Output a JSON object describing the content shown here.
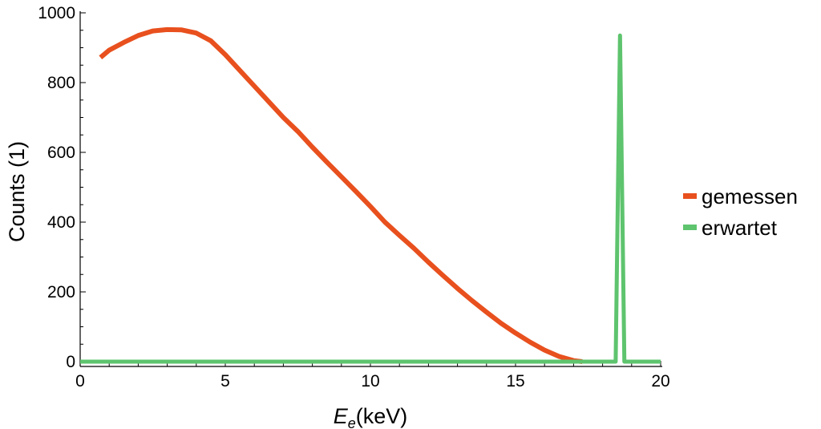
{
  "chart_data": {
    "type": "line",
    "title": "",
    "xlabel": "(keV)",
    "xlabel_symbol": "E",
    "xlabel_subscript": "e",
    "ylabel": "Counts (1)",
    "xlim": [
      0,
      20
    ],
    "ylim": [
      0,
      1000
    ],
    "x_ticks": [
      0,
      5,
      10,
      15,
      20
    ],
    "x_tick_labels": [
      "0",
      "5",
      "10",
      "15",
      "20"
    ],
    "y_ticks": [
      0,
      200,
      400,
      600,
      800,
      1000
    ],
    "y_tick_labels": [
      "0",
      "200",
      "400",
      "600",
      "800",
      "1000"
    ],
    "grid": false,
    "legend_position": "right",
    "series": [
      {
        "name": "gemessen",
        "color": "#e8501e",
        "x": [
          0.7,
          1.0,
          1.5,
          2.0,
          2.5,
          3.0,
          3.5,
          4.0,
          4.5,
          5.0,
          5.5,
          6.0,
          6.5,
          7.0,
          7.5,
          8.0,
          8.5,
          9.0,
          9.5,
          10.0,
          10.5,
          11.0,
          11.5,
          12.0,
          12.5,
          13.0,
          13.5,
          14.0,
          14.5,
          15.0,
          15.5,
          16.0,
          16.5,
          17.0,
          17.3
        ],
        "y": [
          872,
          893,
          915,
          935,
          948,
          952,
          951,
          942,
          920,
          880,
          835,
          790,
          745,
          700,
          660,
          615,
          572,
          530,
          488,
          445,
          400,
          362,
          325,
          285,
          247,
          210,
          175,
          142,
          110,
          82,
          56,
          33,
          15,
          3,
          0
        ]
      },
      {
        "name": "erwartet",
        "color": "#5ec46e",
        "x": [
          0,
          18.45,
          18.6,
          18.75,
          20
        ],
        "y": [
          0,
          0,
          935,
          0,
          0
        ]
      }
    ]
  }
}
